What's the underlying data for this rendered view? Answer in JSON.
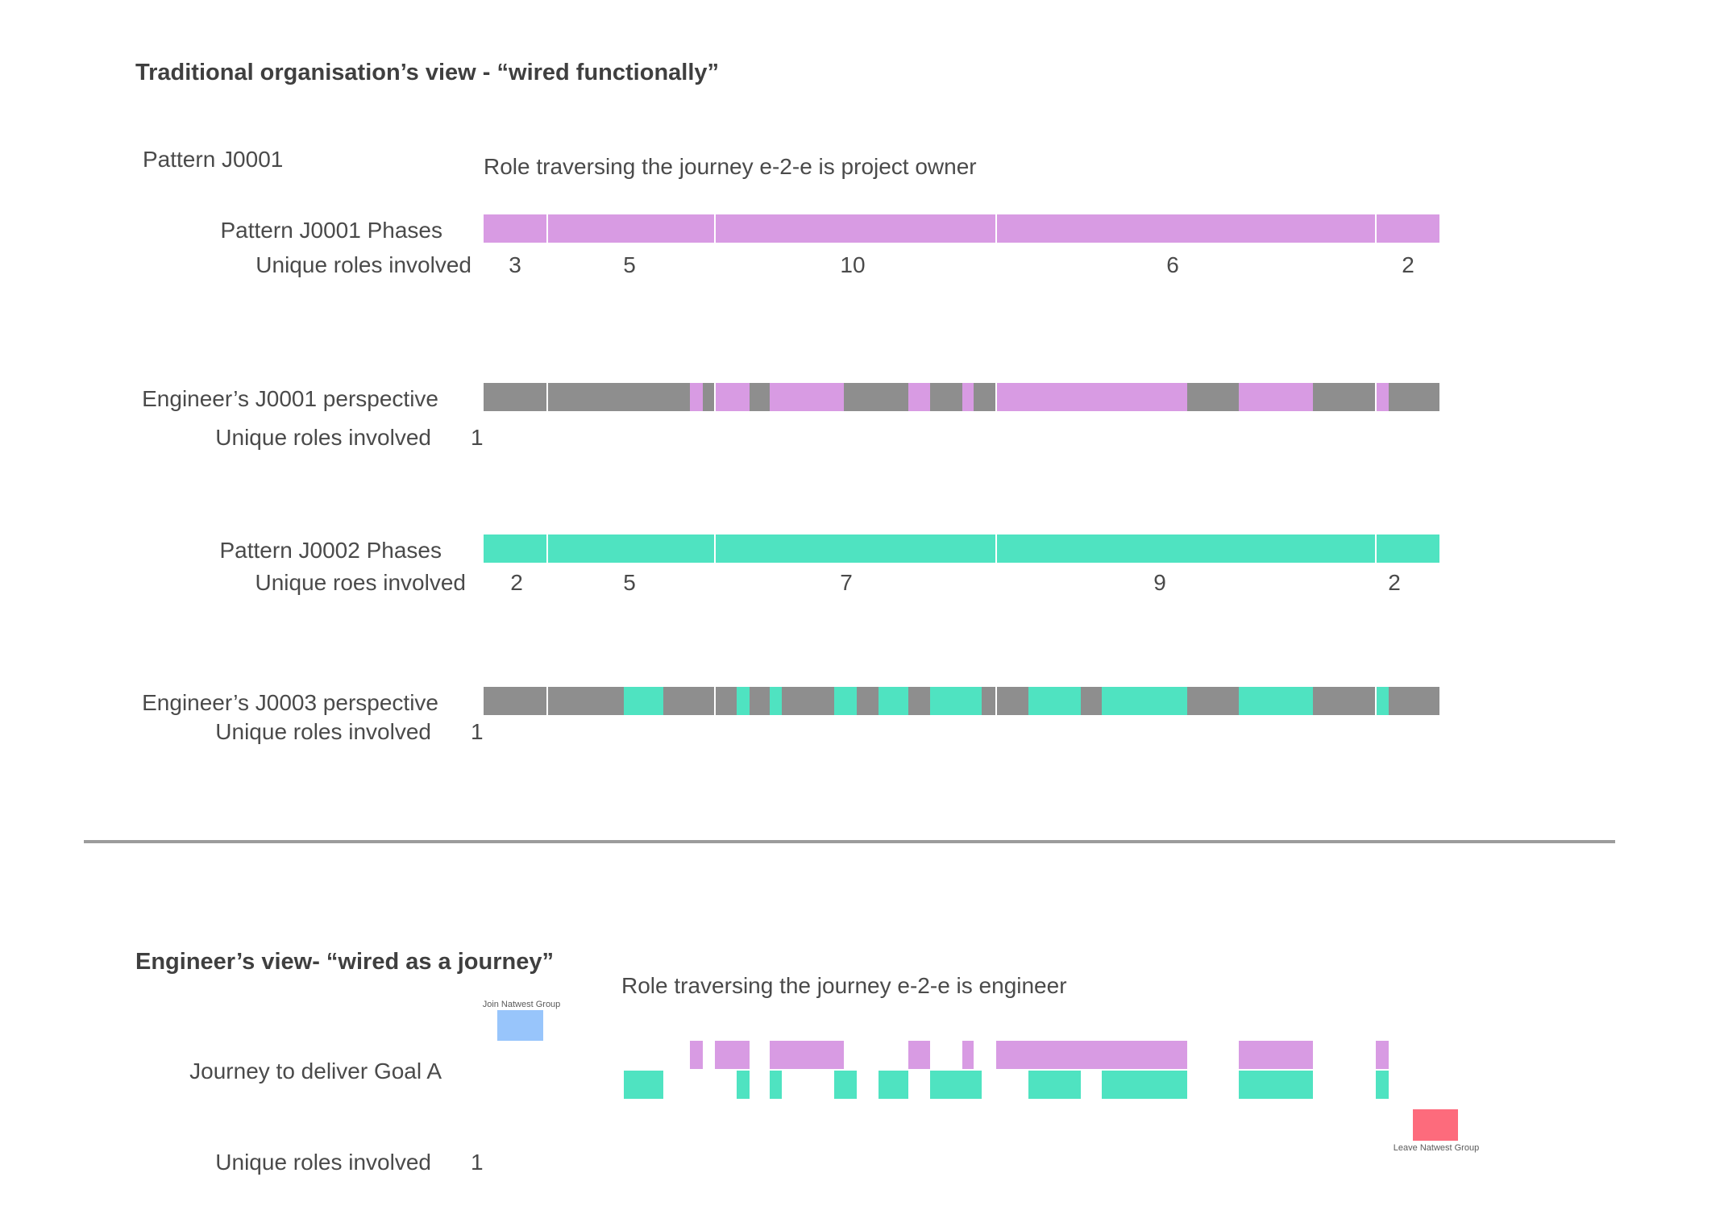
{
  "colors": {
    "lilac": "#d89be3",
    "teal": "#4fe3c1",
    "gray": "#8e8e8e",
    "blue": "#98c5fb",
    "red": "#fd6b7c",
    "divider": "#9c9c9c"
  },
  "section1": {
    "heading": "Traditional organisation’s view - “wired functionally”",
    "pattern_title": "Pattern J0001",
    "role_caption": "Role traversing the journey e-2-e is project owner",
    "j0001_phases_label": "Pattern J0001 Phases",
    "j0001_roles_label": "Unique roles involved",
    "j0001_role_counts": [
      "3",
      "5",
      "10",
      "6",
      "2"
    ],
    "eng_j0001_label": "Engineer’s J0001 perspective",
    "eng_j0001_roles_label": "Unique roles involved",
    "eng_j0001_roles_value": "1",
    "j0002_phases_label": "Pattern J0002 Phases",
    "j0002_roles_label": "Unique roes involved",
    "j0002_role_counts": [
      "2",
      "5",
      "7",
      "9",
      "2"
    ],
    "eng_j0003_label": "Engineer’s J0003 perspective",
    "eng_j0003_roles_label": "Unique roles involved",
    "eng_j0003_roles_value": "1"
  },
  "section2": {
    "heading": "Engineer’s view- “wired as a journey”",
    "role_caption": "Role traversing the journey e-2-e is engineer",
    "join_label": "Join Natwest Group",
    "leave_label": "Leave Natwest Group",
    "journey_label": "Journey to deliver Goal A",
    "roles_label": "Unique roles involved",
    "roles_value": "1"
  },
  "chart_data": {
    "type": "timeline",
    "phases": 5,
    "phase_boundaries_pct": [
      0,
      6.7,
      24.2,
      53.6,
      93.3,
      100
    ],
    "series": [
      {
        "name": "Pattern J0001 Phases",
        "color": "lilac",
        "background": "lilac",
        "unique_roles_per_phase": [
          3,
          5,
          10,
          6,
          2
        ],
        "segments": []
      },
      {
        "name": "Engineer’s J0001 perspective",
        "color": "lilac",
        "background": "gray",
        "unique_roles_total": 1,
        "segments": [
          [
            21.6,
            22.9
          ],
          [
            24.2,
            27.8
          ],
          [
            29.9,
            37.7
          ],
          [
            44.4,
            46.7
          ],
          [
            50.1,
            51.3
          ],
          [
            53.6,
            73.6
          ],
          [
            79.0,
            86.8
          ],
          [
            93.3,
            94.7
          ]
        ]
      },
      {
        "name": "Pattern J0002 Phases",
        "color": "teal",
        "background": "teal",
        "unique_roles_per_phase": [
          2,
          5,
          7,
          9,
          2
        ],
        "segments": []
      },
      {
        "name": "Engineer’s J0003 perspective",
        "color": "teal",
        "background": "gray",
        "unique_roles_total": 1,
        "segments": [
          [
            14.7,
            18.8
          ],
          [
            26.5,
            27.8
          ],
          [
            29.9,
            31.2
          ],
          [
            36.7,
            39.0
          ],
          [
            41.3,
            44.4
          ],
          [
            46.7,
            52.1
          ],
          [
            57.0,
            62.5
          ],
          [
            64.7,
            73.6
          ],
          [
            79.0,
            86.8
          ],
          [
            93.3,
            94.7
          ]
        ]
      },
      {
        "name": "Journey to deliver Goal A (lilac)",
        "color": "lilac",
        "background": "none",
        "segments": [
          [
            21.6,
            22.9
          ],
          [
            24.2,
            27.8
          ],
          [
            29.9,
            37.7
          ],
          [
            44.4,
            46.7
          ],
          [
            50.1,
            51.3
          ],
          [
            53.6,
            73.6
          ],
          [
            79.0,
            86.8
          ],
          [
            93.3,
            94.7
          ]
        ]
      },
      {
        "name": "Journey to deliver Goal A (teal)",
        "color": "teal",
        "background": "none",
        "segments": [
          [
            14.7,
            18.8
          ],
          [
            26.5,
            27.8
          ],
          [
            29.9,
            31.2
          ],
          [
            36.7,
            39.0
          ],
          [
            41.3,
            44.4
          ],
          [
            46.7,
            52.1
          ],
          [
            57.0,
            62.5
          ],
          [
            64.7,
            73.6
          ],
          [
            79.0,
            86.8
          ],
          [
            93.3,
            94.7
          ]
        ]
      }
    ]
  }
}
